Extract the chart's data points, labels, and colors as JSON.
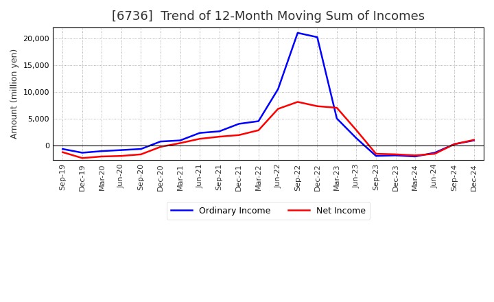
{
  "title": "[6736]  Trend of 12-Month Moving Sum of Incomes",
  "ylabel": "Amount (million yen)",
  "x_labels": [
    "Sep-19",
    "Dec-19",
    "Mar-20",
    "Jun-20",
    "Sep-20",
    "Dec-20",
    "Mar-21",
    "Jun-21",
    "Sep-21",
    "Dec-21",
    "Mar-22",
    "Jun-22",
    "Sep-22",
    "Dec-22",
    "Mar-23",
    "Jun-23",
    "Sep-23",
    "Dec-23",
    "Mar-24",
    "Jun-24",
    "Sep-24",
    "Dec-24"
  ],
  "ordinary_income": [
    -700,
    -1400,
    -1100,
    -900,
    -700,
    700,
    900,
    2300,
    2600,
    4000,
    4500,
    10500,
    21000,
    20200,
    5000,
    1300,
    -2000,
    -1900,
    -2100,
    -1400,
    200,
    900
  ],
  "net_income": [
    -1300,
    -2400,
    -2100,
    -2000,
    -1700,
    -300,
    400,
    1200,
    1600,
    1900,
    2800,
    6800,
    8100,
    7300,
    7000,
    2800,
    -1600,
    -1700,
    -1900,
    -1600,
    200,
    1000
  ],
  "ordinary_color": "#0000ff",
  "net_color": "#ff0000",
  "ylim_min": -2800,
  "ylim_max": 22000,
  "yticks": [
    0,
    5000,
    10000,
    15000,
    20000
  ],
  "background_color": "#ffffff",
  "grid_color": "#999999",
  "line_width": 1.8,
  "title_fontsize": 13,
  "title_color": "#333333",
  "axis_fontsize": 9,
  "tick_fontsize": 8,
  "legend_labels": [
    "Ordinary Income",
    "Net Income"
  ]
}
